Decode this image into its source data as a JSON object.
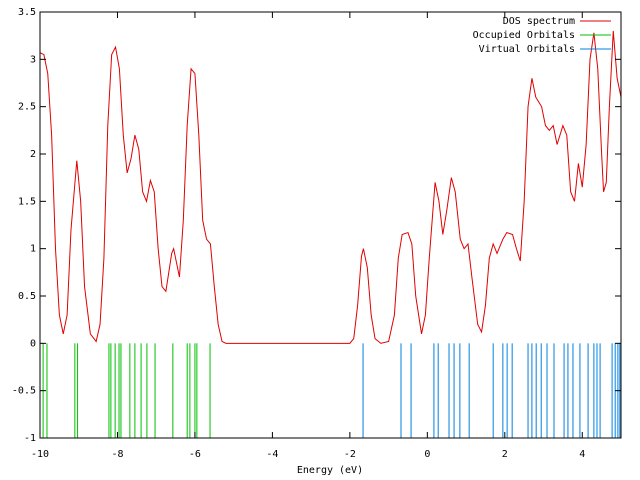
{
  "chart_data": {
    "type": "line",
    "xlabel": "Energy (eV)",
    "xlim": [
      -10,
      5
    ],
    "ylim": [
      -1,
      3.5
    ],
    "xticks": [
      -10,
      -8,
      -6,
      -4,
      -2,
      0,
      2,
      4
    ],
    "yticks": [
      -1,
      -0.5,
      0,
      0.5,
      1,
      1.5,
      2,
      2.5,
      3,
      3.5
    ],
    "legend": "top-right",
    "series": [
      {
        "name": "DOS spectrum",
        "color": "#e00000",
        "type": "line",
        "x": [
          -10.0,
          -9.9,
          -9.8,
          -9.7,
          -9.6,
          -9.5,
          -9.4,
          -9.3,
          -9.2,
          -9.05,
          -8.95,
          -8.85,
          -8.7,
          -8.55,
          -8.45,
          -8.35,
          -8.25,
          -8.15,
          -8.05,
          -7.95,
          -7.85,
          -7.75,
          -7.65,
          -7.55,
          -7.45,
          -7.35,
          -7.25,
          -7.15,
          -7.05,
          -6.95,
          -6.85,
          -6.75,
          -6.6,
          -6.55,
          -6.4,
          -6.3,
          -6.2,
          -6.1,
          -6.0,
          -5.9,
          -5.8,
          -5.7,
          -5.6,
          -5.5,
          -5.4,
          -5.3,
          -5.2,
          -2.0,
          -1.9,
          -1.8,
          -1.7,
          -1.65,
          -1.55,
          -1.45,
          -1.35,
          -1.2,
          -1.0,
          -0.85,
          -0.75,
          -0.65,
          -0.5,
          -0.4,
          -0.3,
          -0.15,
          -0.05,
          0.05,
          0.2,
          0.3,
          0.4,
          0.5,
          0.62,
          0.72,
          0.85,
          0.95,
          1.05,
          1.15,
          1.3,
          1.4,
          1.5,
          1.6,
          1.7,
          1.8,
          1.95,
          2.05,
          2.2,
          2.3,
          2.4,
          2.5,
          2.6,
          2.7,
          2.8,
          2.95,
          3.05,
          3.15,
          3.25,
          3.35,
          3.5,
          3.6,
          3.7,
          3.8,
          3.9,
          4.0,
          4.1,
          4.2,
          4.3,
          4.4,
          4.5,
          4.55,
          4.62,
          4.7,
          4.8,
          4.9,
          5.0
        ],
        "values": [
          3.07,
          3.05,
          2.85,
          2.2,
          1.0,
          0.3,
          0.1,
          0.3,
          1.2,
          1.93,
          1.5,
          0.6,
          0.1,
          0.02,
          0.2,
          0.9,
          2.3,
          3.05,
          3.13,
          2.9,
          2.2,
          1.8,
          1.95,
          2.2,
          2.05,
          1.6,
          1.5,
          1.72,
          1.6,
          1.0,
          0.6,
          0.55,
          0.95,
          1.0,
          0.7,
          1.3,
          2.3,
          2.9,
          2.85,
          2.2,
          1.3,
          1.1,
          1.05,
          0.6,
          0.2,
          0.02,
          0,
          0,
          0.05,
          0.4,
          0.92,
          1.0,
          0.8,
          0.3,
          0.05,
          0.0,
          0.02,
          0.3,
          0.9,
          1.15,
          1.17,
          1.05,
          0.5,
          0.1,
          0.3,
          0.9,
          1.7,
          1.5,
          1.15,
          1.4,
          1.75,
          1.6,
          1.1,
          1.0,
          1.05,
          0.7,
          0.2,
          0.12,
          0.4,
          0.9,
          1.05,
          0.95,
          1.1,
          1.17,
          1.15,
          1.0,
          0.87,
          1.5,
          2.5,
          2.8,
          2.6,
          2.5,
          2.3,
          2.25,
          2.3,
          2.1,
          2.3,
          2.2,
          1.6,
          1.5,
          1.9,
          1.65,
          2.1,
          3.0,
          3.28,
          2.9,
          2.0,
          1.6,
          1.7,
          2.5,
          3.3,
          2.8,
          2.6
        ]
      },
      {
        "name": "Occupied Orbitals",
        "color": "#00c000",
        "type": "impulse",
        "x": [
          -10.0,
          -9.92,
          -9.82,
          -9.1,
          -9.03,
          -8.22,
          -8.17,
          -8.06,
          -7.96,
          -7.91,
          -7.68,
          -7.55,
          -7.39,
          -7.24,
          -7.03,
          -6.57,
          -6.2,
          -6.13,
          -6.0,
          -5.95,
          -5.61
        ]
      },
      {
        "name": "Virtual Orbitals",
        "color": "#0080e0",
        "type": "impulse",
        "x": [
          -1.66,
          -0.68,
          -0.42,
          0.17,
          0.28,
          0.56,
          0.69,
          0.84,
          1.08,
          1.7,
          1.95,
          2.06,
          2.19,
          2.6,
          2.7,
          2.81,
          2.94,
          3.09,
          3.27,
          3.53,
          3.63,
          3.76,
          3.94,
          4.15,
          4.3,
          4.38,
          4.46,
          4.77,
          4.85,
          4.92,
          4.97
        ]
      }
    ]
  }
}
